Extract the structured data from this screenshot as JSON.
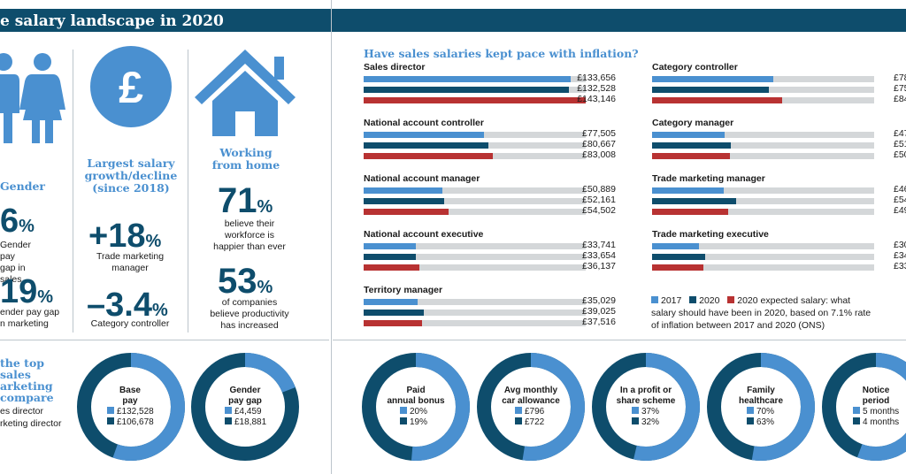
{
  "header": {
    "title": "e salary landscape in 2020"
  },
  "colors": {
    "c2017": "#4a90d0",
    "c2020": "#0e4d6c",
    "cexp": "#b83232",
    "bg_bar": "#d4d7d9",
    "banner": "#0e4d6c"
  },
  "gender": {
    "icon": "man-woman-icon",
    "heading": "Gender",
    "stat1_big": "6",
    "stat1_pct": "%",
    "stat1_text_l1": "Gender pay",
    "stat1_text_l2": "gap in sales",
    "stat2_big": "19",
    "stat2_pct": "%",
    "stat2_text_l1": "ender pay gap",
    "stat2_text_l2": "n marketing"
  },
  "growth": {
    "icon": "pound-coin-icon",
    "heading_l1": "Largest salary",
    "heading_l2": "growth/decline",
    "heading_l3": "(since 2018)",
    "stat1_big": "+18",
    "stat1_pct": "%",
    "stat1_text_l1": "Trade marketing",
    "stat1_text_l2": "manager",
    "stat2_big": "–3.4",
    "stat2_pct": "%",
    "stat2_text": "Category controller"
  },
  "wfh": {
    "icon": "house-icon",
    "heading_l1": "Working",
    "heading_l2": "from home",
    "stat1_big": "71",
    "stat1_pct": "%",
    "stat1_text_l1": "believe their",
    "stat1_text_l2": "workforce is",
    "stat1_text_l3": "happier than ever",
    "stat2_big": "53",
    "stat2_pct": "%",
    "stat2_text_l1": "of companies",
    "stat2_text_l2": "believe productivity",
    "stat2_text_l3": "has increased"
  },
  "compare": {
    "heading_l1": "the top sales",
    "heading_l2": "arketing",
    "heading_l3": "compare",
    "legend1": "es director",
    "legend2": "rketing director"
  },
  "chart_data": [
    {
      "type": "bar",
      "title": "Have sales salaries kept pace with inflation?",
      "series_names": [
        "2017",
        "2020",
        "2020 expected salary: what salary should have been in 2020, based on 7.1% rate of inflation between 2017 and 2020 (ONS)"
      ],
      "groups": [
        {
          "name": "Sales director",
          "values": [
            133656,
            132528,
            143146
          ],
          "labels": [
            "£133,656",
            "£132,528",
            "£143,146"
          ]
        },
        {
          "name": "National account controller",
          "values": [
            77505,
            80667,
            83008
          ],
          "labels": [
            "£77,505",
            "£80,667",
            "£83,008"
          ]
        },
        {
          "name": "National account manager",
          "values": [
            50889,
            52161,
            54502
          ],
          "labels": [
            "£50,889",
            "£52,161",
            "£54,502"
          ]
        },
        {
          "name": "National account executive",
          "values": [
            33741,
            33654,
            36137
          ],
          "labels": [
            "£33,741",
            "£33,654",
            "£36,137"
          ]
        },
        {
          "name": "Territory manager",
          "values": [
            35029,
            39025,
            37516
          ],
          "labels": [
            "£35,029",
            "£39,025",
            "£37,516"
          ]
        },
        {
          "name": "Category controller",
          "values": [
            78000,
            75000,
            84000
          ],
          "labels": [
            "£78",
            "£75",
            "£84"
          ]
        },
        {
          "name": "Category manager",
          "values": [
            47000,
            51000,
            50000
          ],
          "labels": [
            "£47",
            "£51",
            "£50"
          ]
        },
        {
          "name": "Trade marketing manager",
          "values": [
            46000,
            54000,
            49000
          ],
          "labels": [
            "£46",
            "£54",
            "£49"
          ]
        },
        {
          "name": "Trade marketing executive",
          "values": [
            30000,
            34000,
            33000
          ],
          "labels": [
            "£30",
            "£34",
            "£33"
          ]
        }
      ],
      "xlim": [
        0,
        143146
      ]
    },
    {
      "type": "pie",
      "title": "Base pay",
      "series": [
        {
          "name": "",
          "values": [
            132528,
            106678
          ],
          "labels": [
            "£132,528",
            "£106,678"
          ]
        }
      ]
    },
    {
      "type": "pie",
      "title": "Gender pay gap",
      "series": [
        {
          "name": "",
          "values": [
            4459,
            18881
          ],
          "labels": [
            "£4,459",
            "£18,881"
          ]
        }
      ]
    },
    {
      "type": "pie",
      "title": "Paid annual bonus",
      "series": [
        {
          "name": "",
          "values": [
            20,
            19
          ],
          "labels": [
            "20%",
            "19%"
          ]
        }
      ]
    },
    {
      "type": "pie",
      "title": "Avg monthly car allowance",
      "series": [
        {
          "name": "",
          "values": [
            796,
            722
          ],
          "labels": [
            "£796",
            "£722"
          ]
        }
      ]
    },
    {
      "type": "pie",
      "title": "In a profit or share scheme",
      "series": [
        {
          "name": "",
          "values": [
            37,
            32
          ],
          "labels": [
            "37%",
            "32%"
          ]
        }
      ]
    },
    {
      "type": "pie",
      "title": "Family healthcare",
      "series": [
        {
          "name": "",
          "values": [
            70,
            63
          ],
          "labels": [
            "70%",
            "63%"
          ]
        }
      ]
    },
    {
      "type": "pie",
      "title": "Notice period",
      "series": [
        {
          "name": "",
          "values": [
            5,
            4
          ],
          "labels": [
            "5 months",
            "4 months"
          ]
        }
      ]
    }
  ],
  "donut_titles": {
    "base_pay_l1": "Base",
    "base_pay_l2": "pay",
    "gender_gap_l1": "Gender",
    "gender_gap_l2": "pay gap",
    "bonus_l1": "Paid",
    "bonus_l2": "annual bonus",
    "car_l1": "Avg monthly",
    "car_l2": "car allowance",
    "profit_l1": "In a profit or",
    "profit_l2": "share scheme",
    "health_l1": "Family",
    "health_l2": "healthcare",
    "notice_l1": "Notice",
    "notice_l2": "period"
  },
  "legend": {
    "label_2017": "2017",
    "label_2020": "2020",
    "label_exp_l1": "2020 expected salary: what",
    "label_exp_l2": "salary should have been in 2020, based on 7.1% rate",
    "label_exp_l3": "of inflation between 2017 and 2020 (ONS)"
  }
}
